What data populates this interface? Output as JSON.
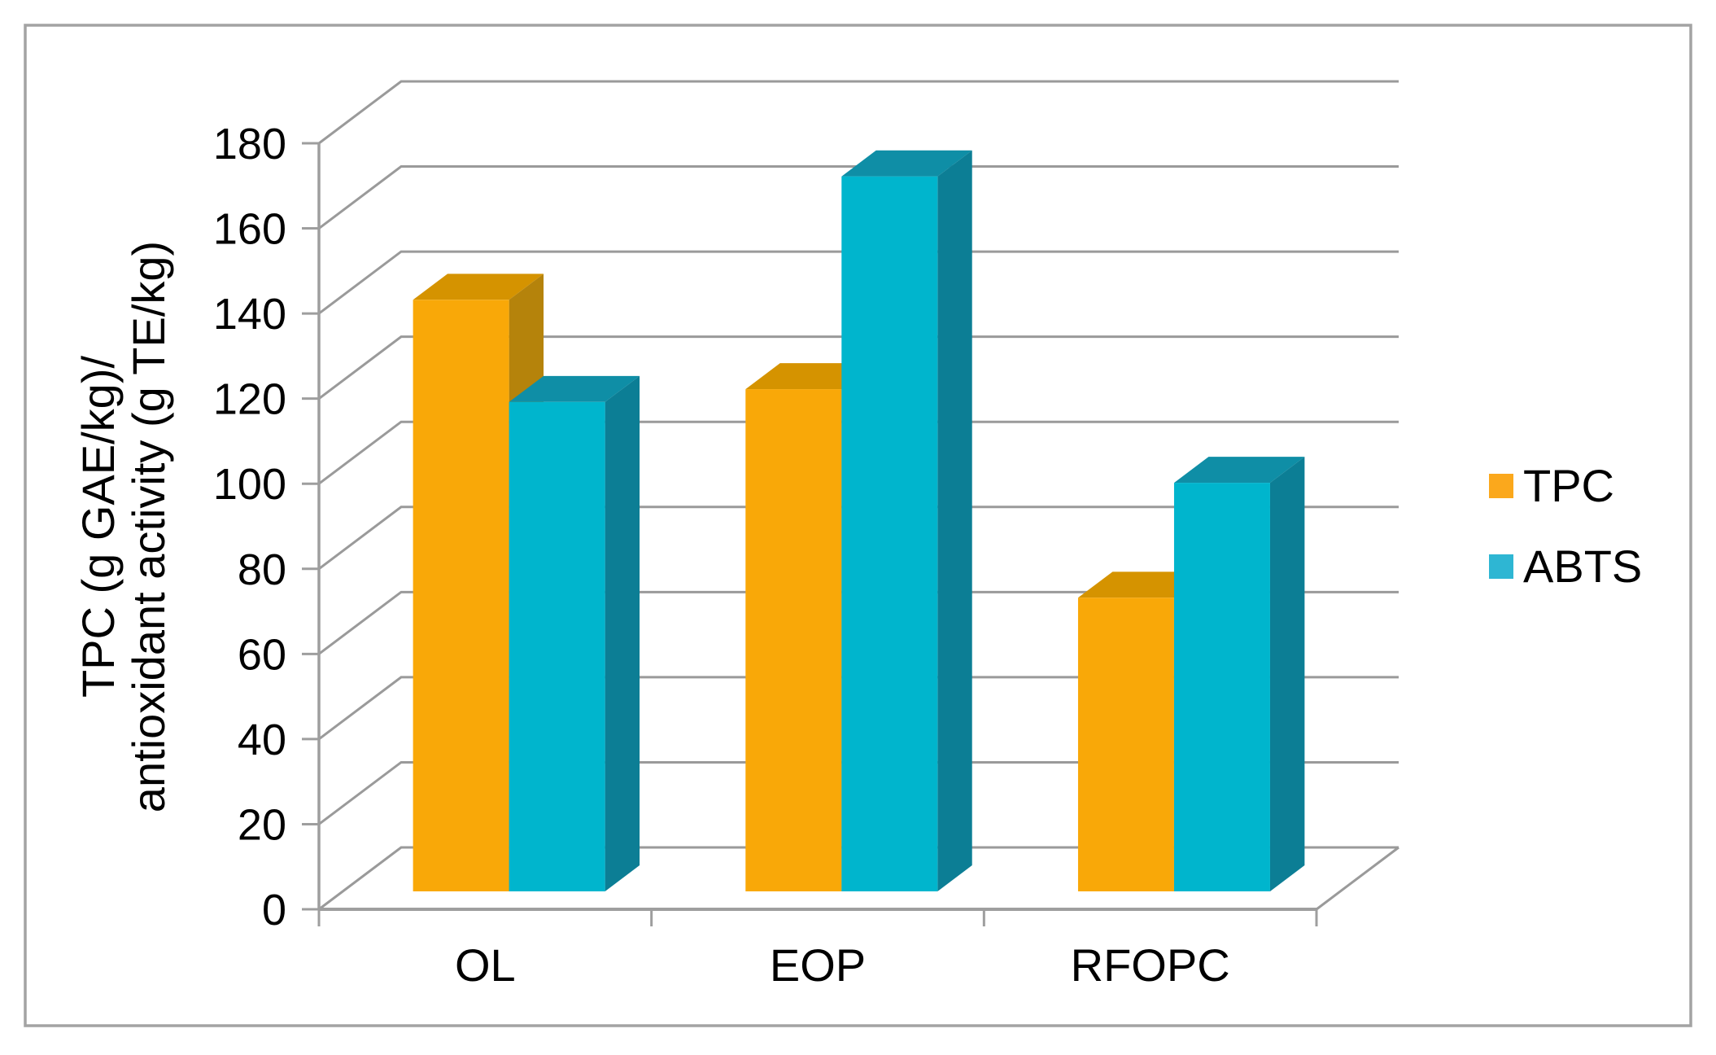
{
  "figure": {
    "background": "#FFFFFF",
    "border_color": "#A3A3A3"
  },
  "chart_data": {
    "type": "bar",
    "style": "3d-clustered-column",
    "categories": [
      "OL",
      "EOP",
      "RFOPC"
    ],
    "series": [
      {
        "name": "TPC",
        "values": [
          139,
          118,
          69
        ],
        "color_front": "#F9A808",
        "color_top": "#D59300",
        "color_side": "#B5830B"
      },
      {
        "name": "ABTS",
        "values": [
          115,
          168,
          96
        ],
        "color_front": "#00B5CD",
        "color_top": "#0F8EA6",
        "color_side": "#0C7E95"
      }
    ],
    "ylabel_line1": "TPC (g GAE/kg)/",
    "ylabel_line2": "antioxidant activity (g TE/kg)",
    "xlabel": "",
    "title": "",
    "ylim": [
      0,
      180
    ],
    "ytick_step": 20,
    "grid": true,
    "legend_position": "right",
    "gridline_color": "#9A9A9A",
    "axis_color": "#9E9E9E",
    "text_color": "#000000"
  },
  "legend": {
    "items": [
      {
        "label": "TPC",
        "color": "#FBA81C"
      },
      {
        "label": "ABTS",
        "color": "#2EB6D3"
      }
    ]
  }
}
